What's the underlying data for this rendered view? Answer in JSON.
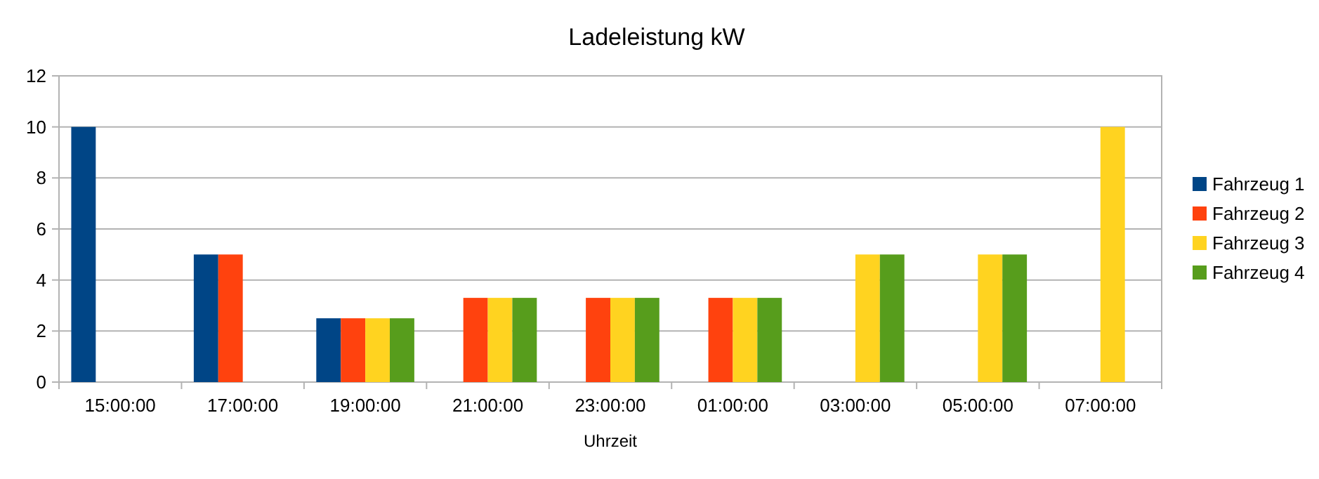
{
  "chart_data": {
    "type": "bar",
    "title": "Ladeleistung kW",
    "xlabel": "Uhrzeit",
    "categories": [
      "15:00:00",
      "17:00:00",
      "19:00:00",
      "21:00:00",
      "23:00:00",
      "01:00:00",
      "03:00:00",
      "05:00:00",
      "07:00:00"
    ],
    "series": [
      {
        "name": "Fahrzeug 1",
        "color": "#004586",
        "values": [
          10,
          5,
          2.5,
          null,
          null,
          null,
          null,
          null,
          null
        ]
      },
      {
        "name": "Fahrzeug 2",
        "color": "#ff420e",
        "values": [
          null,
          5,
          2.5,
          3.3,
          3.3,
          3.3,
          null,
          null,
          null
        ]
      },
      {
        "name": "Fahrzeug 3",
        "color": "#ffd320",
        "values": [
          null,
          null,
          2.5,
          3.3,
          3.3,
          3.3,
          5,
          5,
          10
        ]
      },
      {
        "name": "Fahrzeug 4",
        "color": "#579d1c",
        "values": [
          null,
          null,
          2.5,
          3.3,
          3.3,
          3.3,
          5,
          5,
          null
        ]
      }
    ],
    "ylim": [
      0,
      12
    ],
    "yticks": [
      0,
      2,
      4,
      6,
      8,
      10,
      12
    ],
    "grid": "y",
    "legend": "right"
  }
}
